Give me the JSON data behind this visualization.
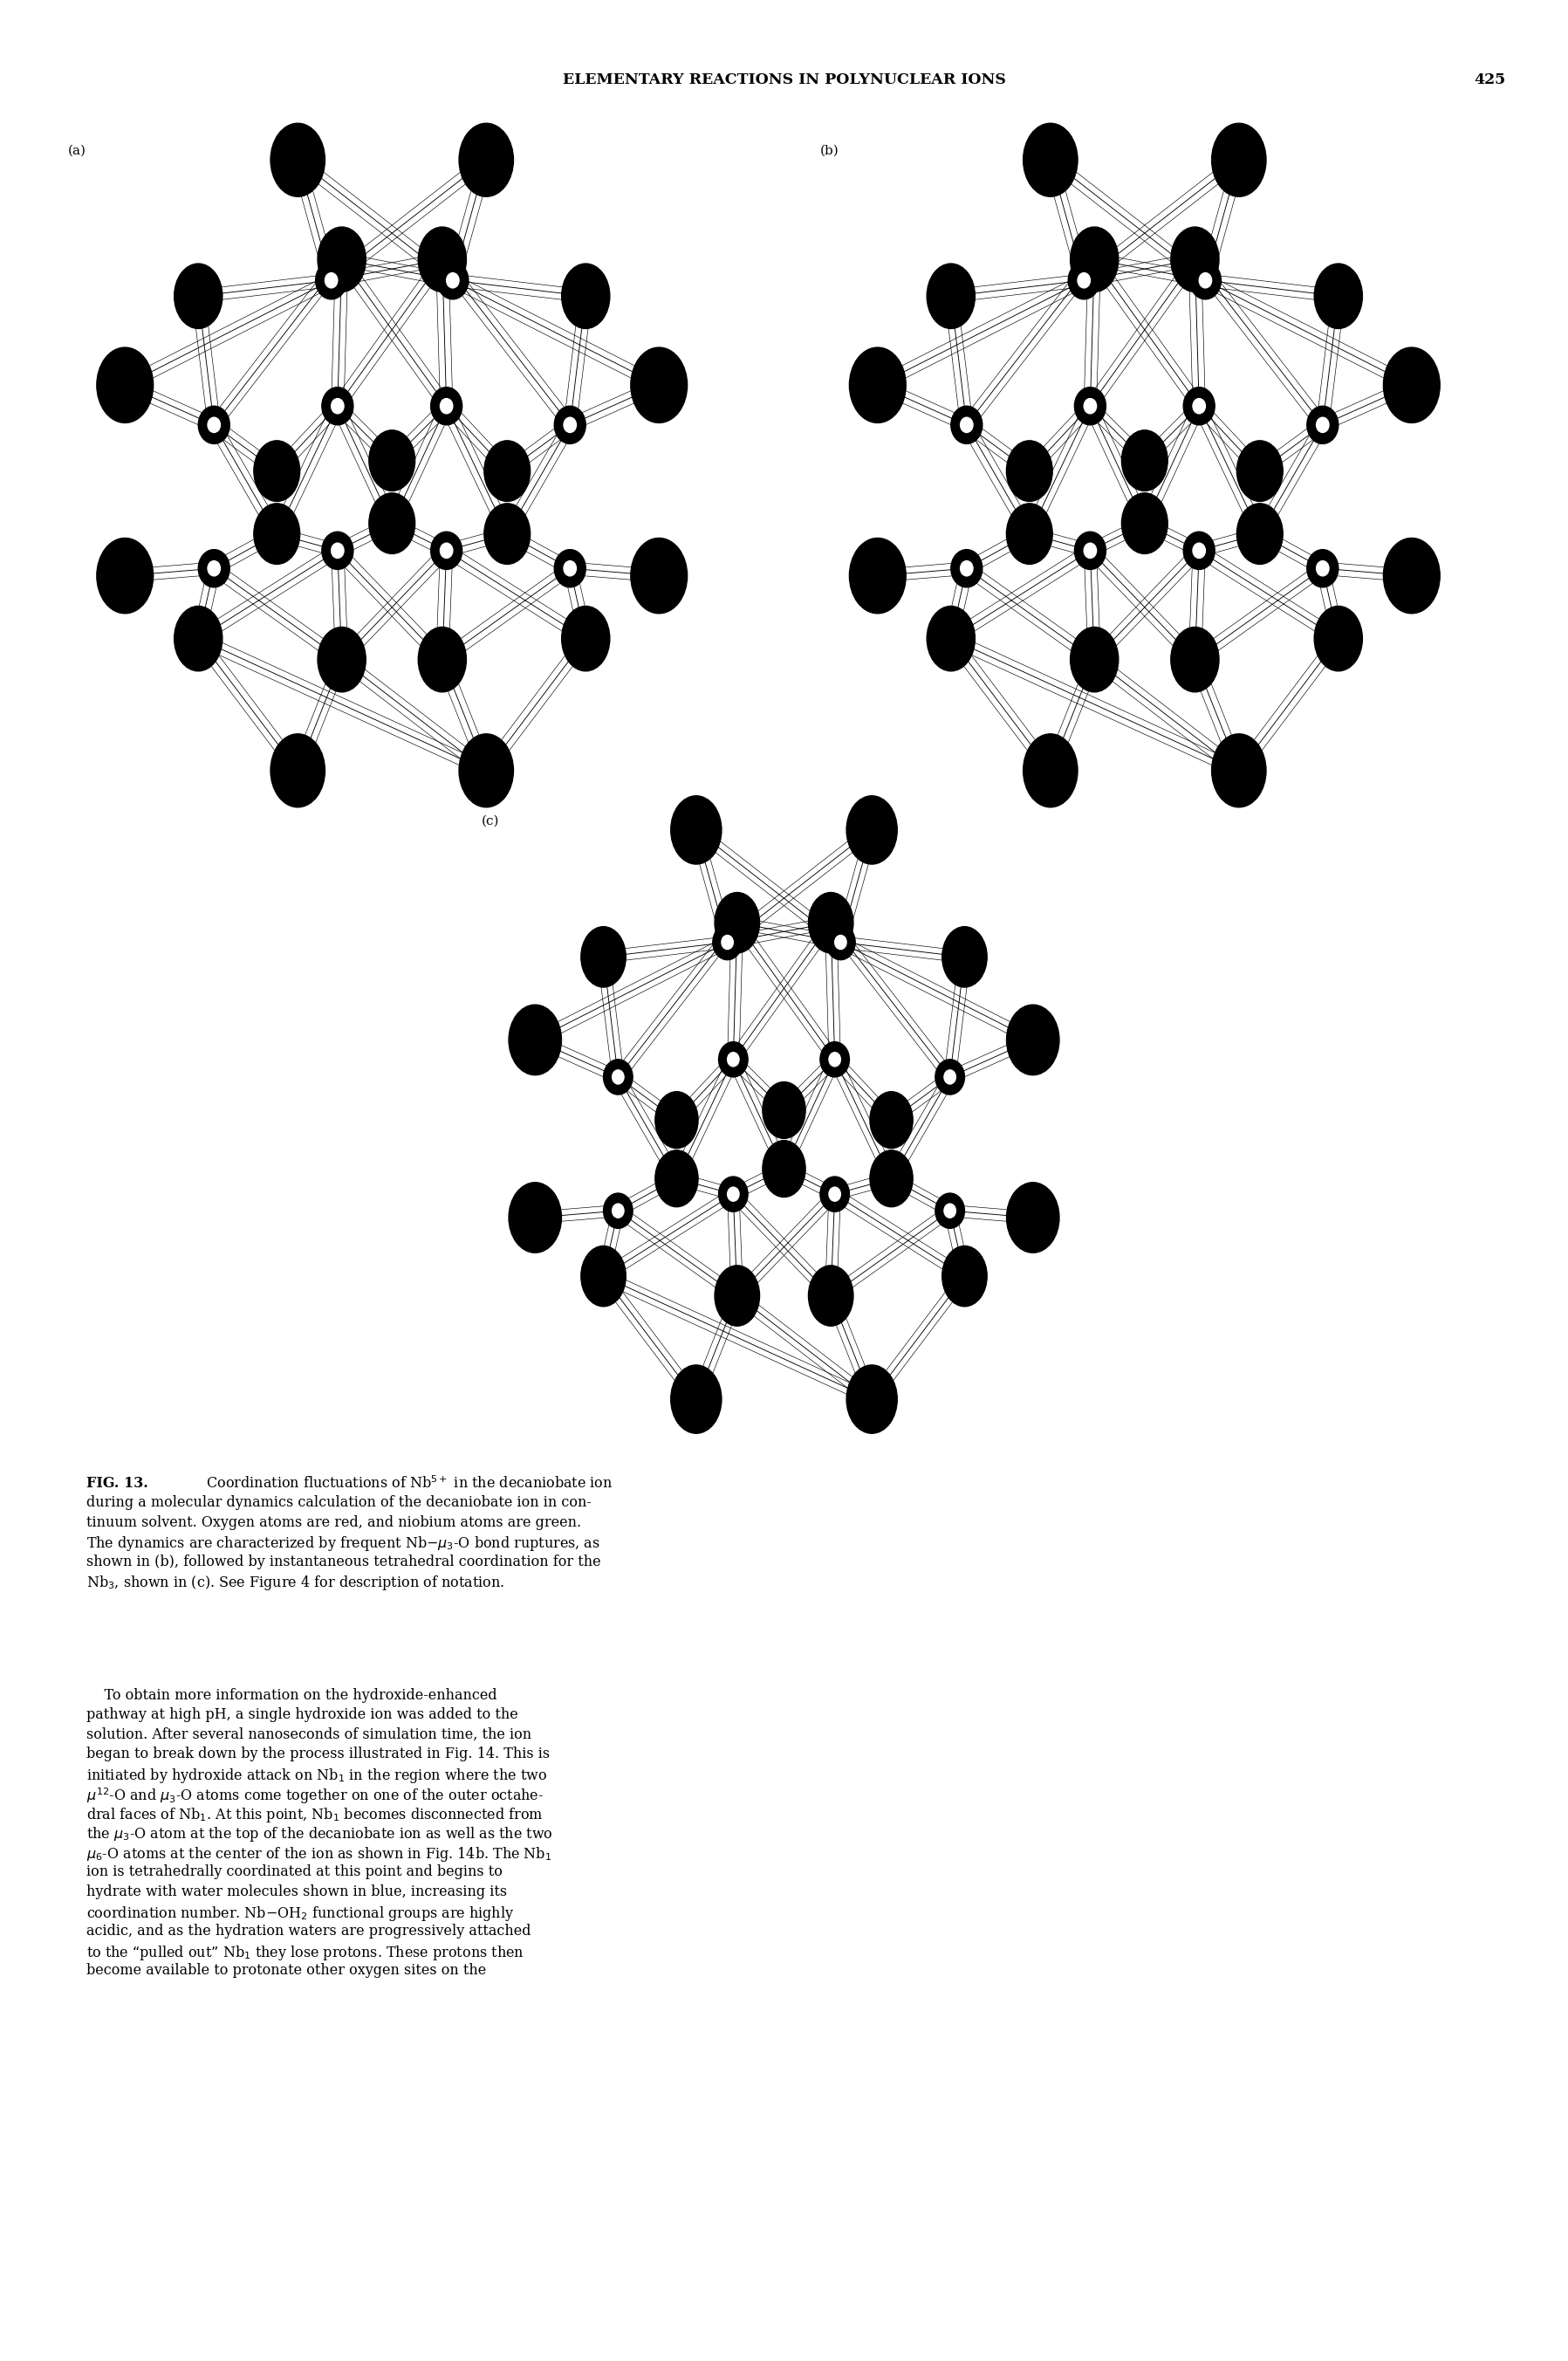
{
  "page_width": 17.97,
  "page_height": 27.05,
  "background_color": "#ffffff",
  "header_text": "ELEMENTARY REACTIONS IN POLYNUCLEAR IONS",
  "header_page": "425",
  "header_fontsize": 13,
  "caption_bold": "FIG. 13.",
  "caption_text_part2": "  Coordination fluctuations of Nb",
  "caption_text_part3": " in the decaniobate ion during a molecular dynamics calculation of the decaniobate ion in continuum solvent. Oxygen atoms are red, and niobium atoms are green. The dynamics are characterized by frequent Nb–μ",
  "caption_text_part4": "-O bond ruptures, as shown in (b), followed by instantaneous tetrahedral coordination for the Nb",
  "caption_text_part5": ", shown in (c). See Figure 4 for description of notation.",
  "body_indent": "    To obtain more information on the hydroxide-enhanced\npathway at high pH, a single hydroxide ion was added to the\nsolution. After several nanoseconds of simulation time, the ion\nbegan to break down by the process illustrated in Fig. 14. This is\ninitiated by hydroxide attack on Nb",
  "body_line2": " in the region where the two\nμ",
  "body_line3": "-O and μ",
  "body_line4": "-O atoms come together on one of the outer octahe-\ndral faces of Nb",
  "body_line5": ". At this point, Nb",
  "body_line6": " becomes disconnected from\nthe μ",
  "body_line7": "-O atom at the top of the decaniobate ion as well as the two\nμ",
  "body_line8": "-O atoms at the center of the ion as shown in Fig. 14b. The Nb",
  "body_line9": "\nion is tetrahedrally coordinated at this point and begins to\nhydrate with water molecules shown in blue, increasing its\ncoordination number. Nb–OH",
  "body_line10": " functional groups are highly\nacidic, and as the hydration waters are progressively attached\nto the “pulled out” Nb",
  "body_line11": " they lose protons. These protons then\nbecome available to protonate other oxygen sites on the",
  "label_a": "(a)",
  "label_b": "(b)",
  "label_c": "(c)",
  "label_fontsize": 11
}
